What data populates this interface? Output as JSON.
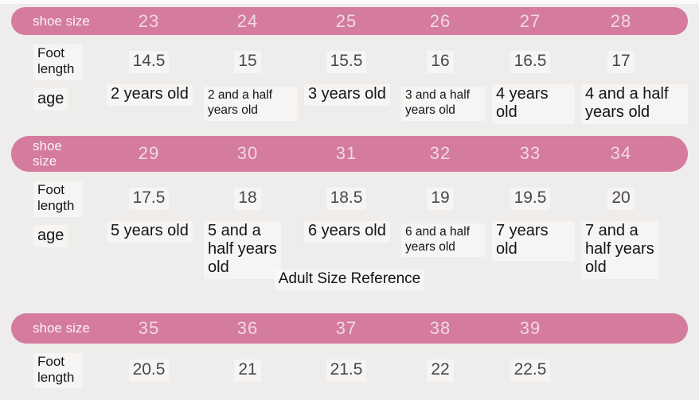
{
  "colors": {
    "header_pink": "#d47b9e",
    "background": "#efedeb",
    "header_text": "#f0d8e2"
  },
  "chart_data": [
    {
      "type": "table",
      "row_labels": [
        "shoe size",
        "Foot length",
        "age"
      ],
      "shoe_sizes": [
        "23",
        "24",
        "25",
        "26",
        "27",
        "28"
      ],
      "foot_lengths": [
        "14.5",
        "15",
        "15.5",
        "16",
        "16.5",
        "17"
      ],
      "ages": [
        "2 years old",
        "2 and a half years old",
        "3 years old",
        "3 and a half years old",
        "4 years old",
        "4 and a half years old"
      ]
    },
    {
      "type": "table",
      "row_labels": [
        "shoe size",
        "Foot length",
        "age"
      ],
      "shoe_sizes": [
        "29",
        "30",
        "31",
        "32",
        "33",
        "34"
      ],
      "foot_lengths": [
        "17.5",
        "18",
        "18.5",
        "19",
        "19.5",
        "20"
      ],
      "ages": [
        "5 years old",
        "5 and a half years old",
        "6 years old",
        "6 and a half years old",
        "7 years old",
        "7 and a half years old"
      ]
    },
    {
      "type": "table",
      "title": "Adult Size Reference",
      "row_labels": [
        "shoe size",
        "Foot length"
      ],
      "shoe_sizes": [
        "35",
        "36",
        "37",
        "38",
        "39"
      ],
      "foot_lengths": [
        "20.5",
        "21",
        "21.5",
        "22",
        "22.5"
      ]
    }
  ]
}
